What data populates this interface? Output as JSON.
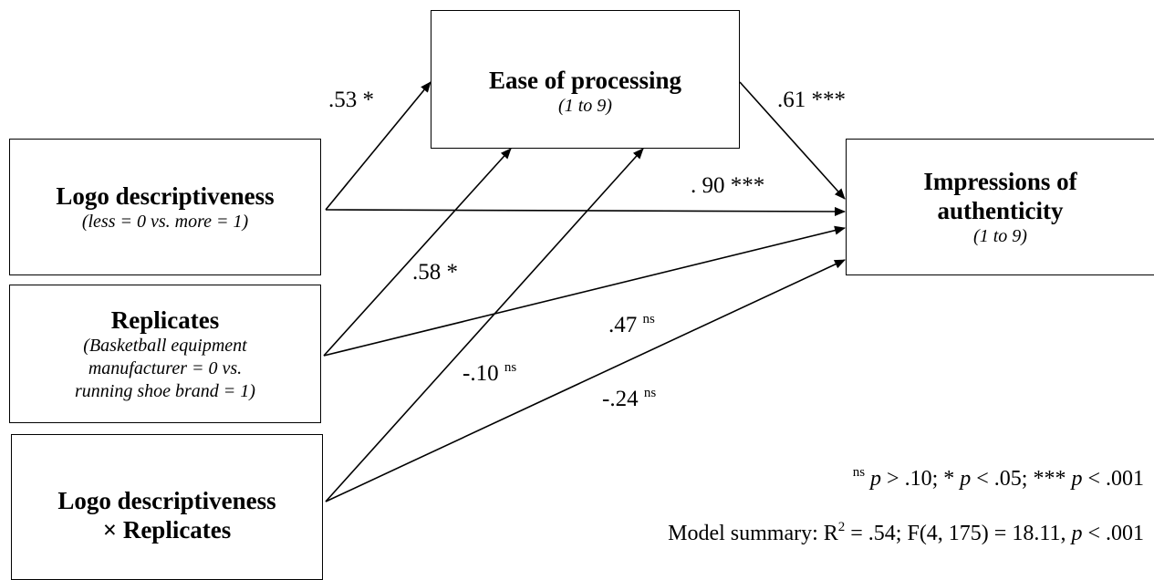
{
  "nodes": {
    "mediator": {
      "title": "Ease of processing",
      "sub": "(1 to 9)"
    },
    "x": {
      "title": "Logo descriptiveness",
      "sub": "(less = 0 vs. more = 1)"
    },
    "w": {
      "title": "Replicates",
      "sub1": "(Basketball equipment",
      "sub2": "manufacturer = 0 vs.",
      "sub3": "running shoe brand = 1)"
    },
    "xw": {
      "title1": "Logo descriptiveness",
      "title2": "× Replicates"
    },
    "y": {
      "title1": "Impressions of",
      "title2": "authenticity",
      "sub": "(1 to 9)"
    }
  },
  "paths": {
    "x_to_m": {
      "value": ".53",
      "sig": "*"
    },
    "m_to_y": {
      "value": ".61",
      "sig": "***"
    },
    "x_to_y": {
      "value": ". 90",
      "sig": "***"
    },
    "w_to_m": {
      "value": ".58",
      "sig": "*"
    },
    "w_to_y": {
      "value": ".47",
      "sig": "ns"
    },
    "xw_to_m": {
      "value": "-.10",
      "sig": "ns"
    },
    "xw_to_y": {
      "value": "-.24",
      "sig": "ns"
    }
  },
  "legend": {
    "ns_sup": "ns",
    "p1": "p",
    "t1": " > .10; * ",
    "p2": "p",
    "t2": " < .05; *** ",
    "p3": "p",
    "t3": " < .001"
  },
  "model": {
    "prefix": "Model summary: R",
    "r_exp": "2",
    "mid": " = .54; F(4, 175) = 18.11, ",
    "p": "p",
    "end": " < .001"
  }
}
